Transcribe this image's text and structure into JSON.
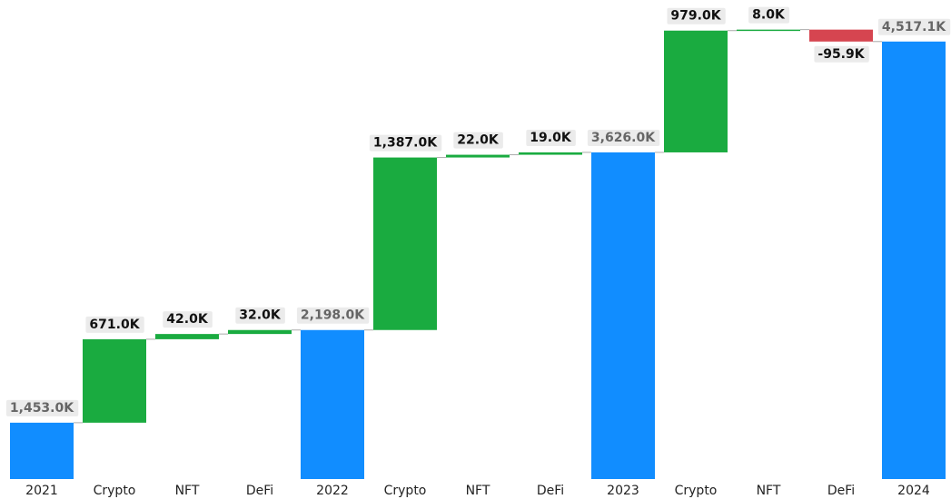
{
  "chart_data": {
    "type": "waterfall",
    "categories": [
      "2021",
      "Crypto",
      "NFT",
      "DeFi",
      "2022",
      "Crypto",
      "NFT",
      "DeFi",
      "2023",
      "Crypto",
      "NFT",
      "DeFi",
      "2024"
    ],
    "measures": [
      "total",
      "relative",
      "relative",
      "relative",
      "total",
      "relative",
      "relative",
      "relative",
      "total",
      "relative",
      "relative",
      "relative",
      "total"
    ],
    "values": [
      1453.0,
      671.0,
      42.0,
      32.0,
      2198.0,
      1387.0,
      22.0,
      19.0,
      3626.0,
      979.0,
      8.0,
      -95.9,
      4517.1
    ],
    "value_labels": [
      "1,453.0K",
      "671.0K",
      "42.0K",
      "32.0K",
      "2,198.0K",
      "1,387.0K",
      "22.0K",
      "19.0K",
      "3,626.0K",
      "979.0K",
      "8.0K",
      "-95.9K",
      "4,517.1K"
    ],
    "total_color": "#118dff",
    "increase_color": "#1aab40",
    "decrease_color": "#d64550",
    "ylim": [
      1000,
      4800
    ]
  }
}
